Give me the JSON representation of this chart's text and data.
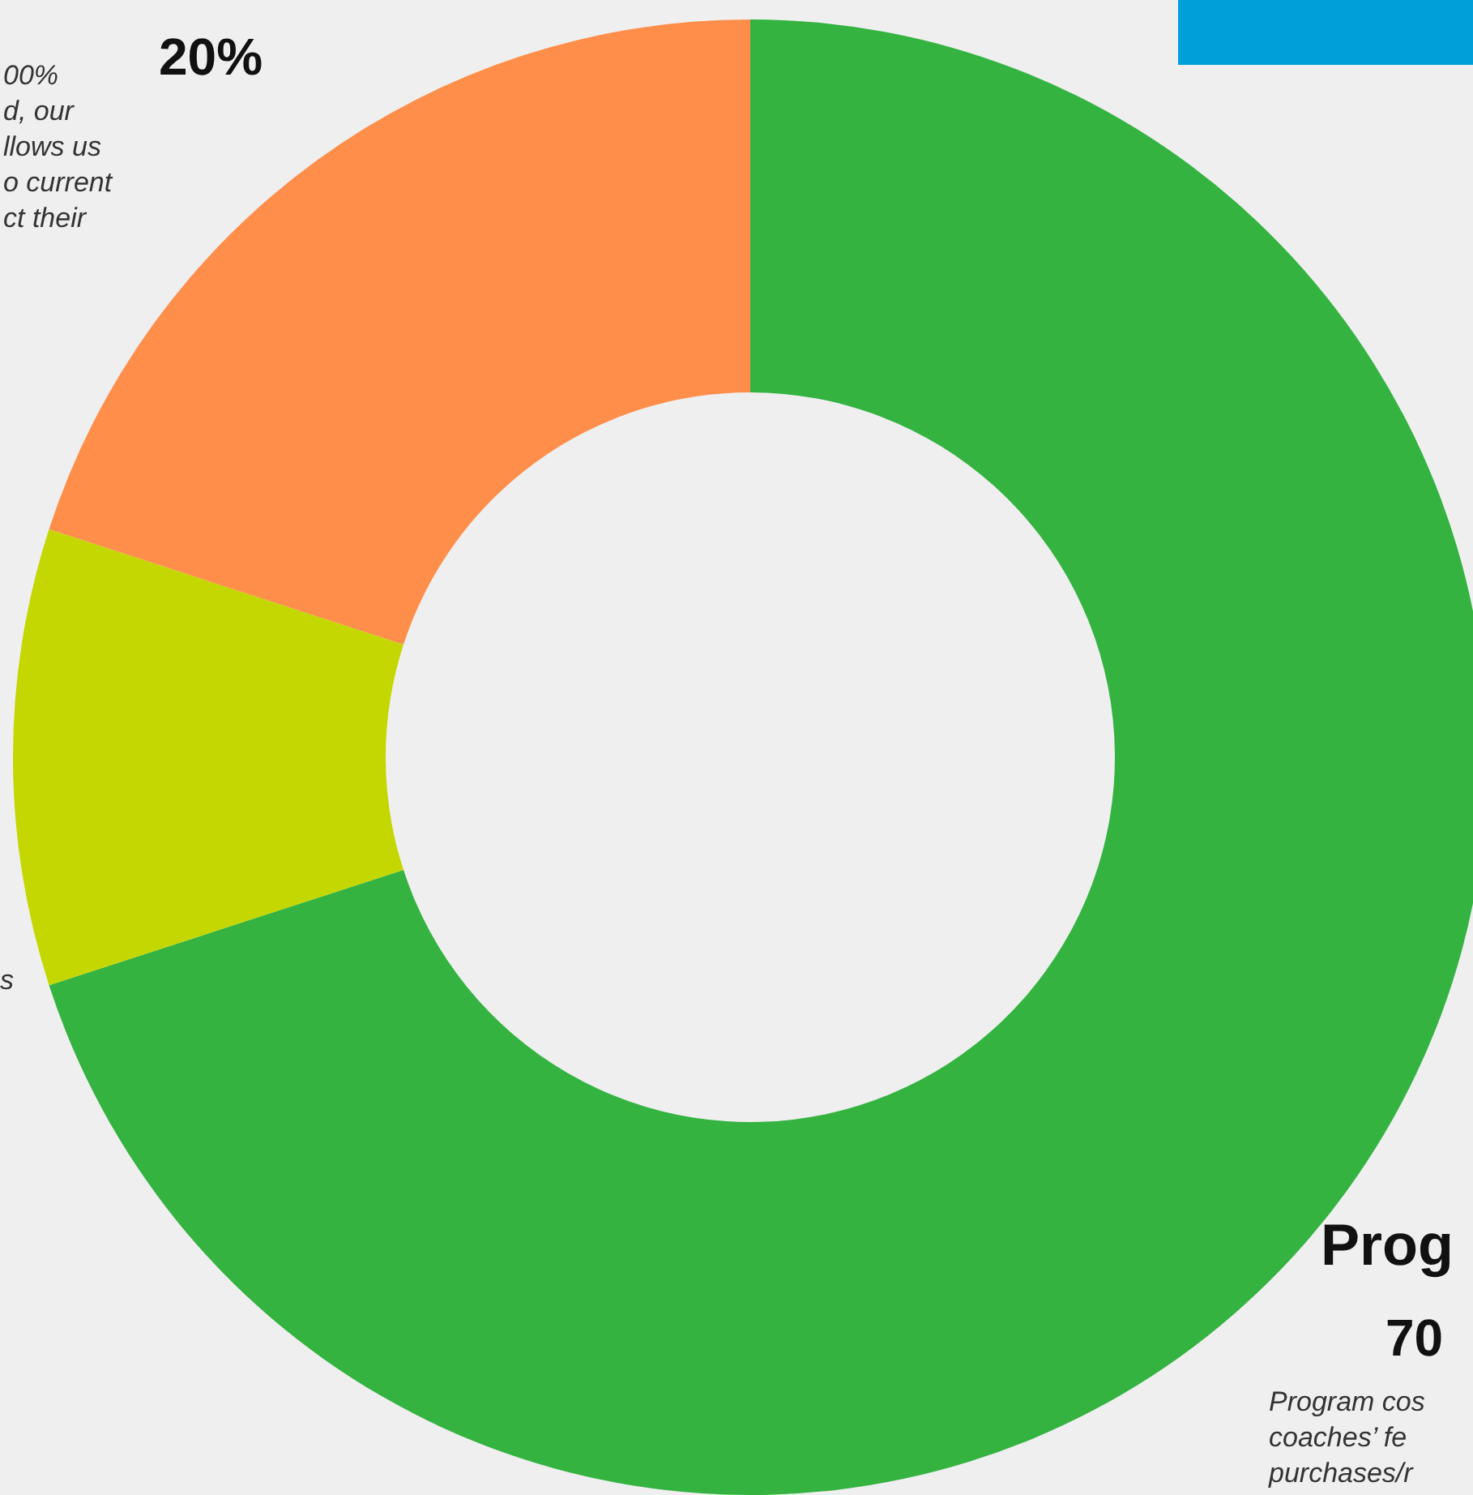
{
  "chart_data": {
    "type": "donut",
    "categories": [
      "Prog",
      null,
      null
    ],
    "values": [
      70,
      10,
      20
    ],
    "colors": [
      "#34b341",
      "#c5d700",
      "#fe8e4a"
    ],
    "value_labels": [
      "70",
      null,
      "20%"
    ],
    "annotations": [
      "00%\nd, our\nllows us\no current\nct their",
      "s",
      "Program cos\ncoaches’ fe\npurchases/r"
    ]
  }
}
